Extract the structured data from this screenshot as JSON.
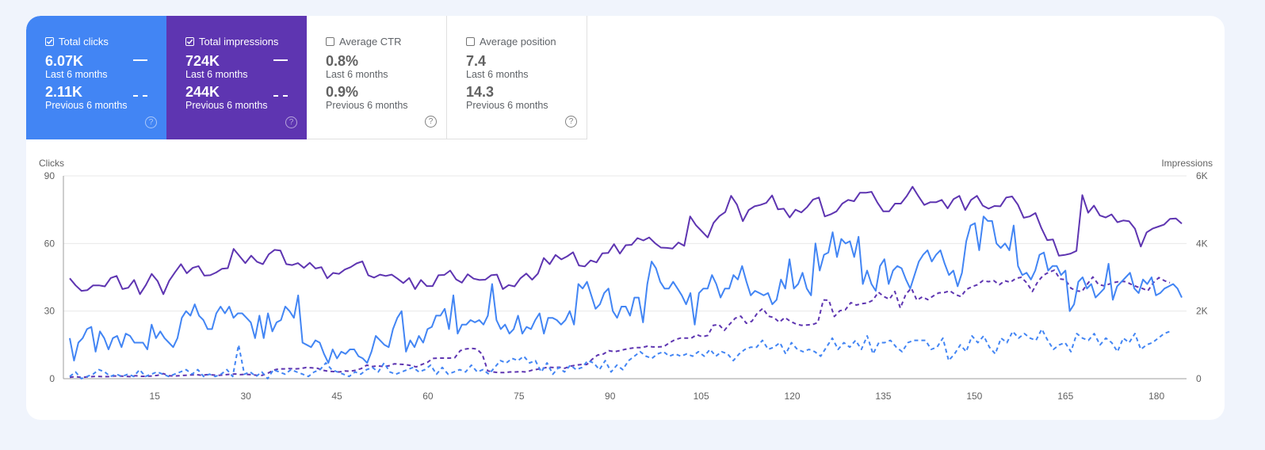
{
  "metrics": [
    {
      "id": "clicks",
      "label": "Total clicks",
      "checked": true,
      "current": "6.07K",
      "current_label": "Last 6 months",
      "previous": "2.11K",
      "previous_label": "Previous 6 months",
      "color": "#4285f4"
    },
    {
      "id": "impressions",
      "label": "Total impressions",
      "checked": true,
      "current": "724K",
      "current_label": "Last 6 months",
      "previous": "244K",
      "previous_label": "Previous 6 months",
      "color": "#5e35b1"
    },
    {
      "id": "ctr",
      "label": "Average CTR",
      "checked": false,
      "current": "0.8%",
      "current_label": "Last 6 months",
      "previous": "0.9%",
      "previous_label": "Previous 6 months"
    },
    {
      "id": "position",
      "label": "Average position",
      "checked": false,
      "current": "7.4",
      "current_label": "Last 6 months",
      "previous": "14.3",
      "previous_label": "Previous 6 months"
    }
  ],
  "help_glyph": "?",
  "chart_data": {
    "type": "line",
    "left_axis": {
      "label": "Clicks",
      "ylim": [
        0,
        90
      ],
      "ticks": [
        "0",
        "30",
        "60",
        "90"
      ]
    },
    "right_axis": {
      "label": "Impressions",
      "ylim": [
        0,
        6000
      ],
      "ticks": [
        "0",
        "2K",
        "4K",
        "6K"
      ]
    },
    "x_ticks": [
      "15",
      "30",
      "45",
      "60",
      "75",
      "90",
      "105",
      "120",
      "135",
      "150",
      "165",
      "180"
    ],
    "grid": true,
    "series": [
      {
        "name": "Total clicks (Last 6 months)",
        "axis": "left",
        "style": "solid",
        "color": "#4285f4",
        "values": [
          18,
          8,
          16,
          18,
          22,
          23,
          12,
          21,
          18,
          13,
          18,
          19,
          14,
          20,
          19,
          16,
          16,
          16,
          13,
          24,
          18,
          21,
          18,
          16,
          14,
          18,
          27,
          30,
          28,
          33,
          28,
          26,
          22,
          22,
          29,
          32,
          29,
          32,
          27,
          29,
          29,
          27,
          25,
          18,
          28,
          18,
          29,
          21,
          25,
          26,
          32,
          30,
          27,
          37,
          16,
          15,
          14,
          17,
          16,
          11,
          7,
          13,
          9,
          12,
          11,
          13,
          13,
          10,
          9,
          7,
          12,
          19,
          17,
          15,
          14,
          22,
          27,
          30,
          12,
          17,
          14,
          19,
          16,
          22,
          23,
          28,
          28,
          31,
          22,
          37,
          20,
          24,
          24,
          26,
          25,
          26,
          24,
          28,
          42,
          26,
          22,
          24,
          20,
          22,
          28,
          20,
          23,
          22,
          26,
          29,
          20,
          27,
          27,
          26,
          24,
          26,
          30,
          24,
          42,
          40,
          43,
          37,
          31,
          33,
          38,
          40,
          30,
          27,
          32,
          32,
          28,
          36,
          36,
          25,
          42,
          52,
          49,
          43,
          40,
          40,
          43,
          40,
          37,
          33,
          38,
          24,
          38,
          40,
          40,
          46,
          42,
          36,
          40,
          40,
          46,
          44,
          50,
          43,
          37,
          39,
          38,
          37,
          38,
          33,
          35,
          44,
          40,
          53,
          40,
          42,
          47,
          40,
          37,
          60,
          48,
          55,
          56,
          65,
          54,
          62,
          60,
          61,
          54,
          63,
          42,
          48,
          42,
          39,
          50,
          53,
          42,
          48,
          50,
          49,
          44,
          40,
          46,
          52,
          55,
          57,
          52,
          55,
          57,
          51,
          46,
          48,
          41,
          47,
          61,
          68,
          69,
          57,
          72,
          70,
          70,
          60,
          58,
          60,
          57,
          68,
          50,
          46,
          47,
          44,
          48,
          55,
          56,
          48,
          50,
          50,
          46,
          48,
          30,
          33,
          43,
          45,
          40,
          42,
          36,
          38,
          40,
          51,
          35,
          41,
          43,
          45,
          47,
          40,
          38,
          44,
          42,
          45,
          37,
          38,
          40,
          41,
          42,
          40,
          36
        ]
      },
      {
        "name": "Total impressions (Last 6 months)",
        "axis": "right",
        "style": "solid",
        "color": "#5e35b1",
        "values": [
          2970,
          2760,
          2600,
          2620,
          2760,
          2760,
          2730,
          2980,
          3040,
          2650,
          2690,
          2920,
          2500,
          2770,
          3100,
          2890,
          2500,
          2900,
          3150,
          3390,
          3120,
          3280,
          3330,
          3050,
          3060,
          3140,
          3250,
          3270,
          3840,
          3630,
          3420,
          3640,
          3460,
          3390,
          3680,
          3810,
          3790,
          3390,
          3360,
          3420,
          3280,
          3430,
          3260,
          3300,
          2970,
          3130,
          3100,
          3230,
          3300,
          3410,
          3470,
          3060,
          2990,
          3080,
          3040,
          3080,
          2960,
          2830,
          2980,
          2650,
          2920,
          2740,
          2740,
          3060,
          3070,
          3200,
          2940,
          2840,
          3090,
          2960,
          2920,
          2930,
          3060,
          3080,
          2650,
          2770,
          2730,
          2970,
          3110,
          2930,
          3110,
          3570,
          3390,
          3660,
          3530,
          3620,
          3740,
          3350,
          3320,
          3500,
          3440,
          3710,
          3720,
          3980,
          3700,
          3950,
          3960,
          4160,
          4090,
          4180,
          4010,
          3880,
          3870,
          3850,
          4030,
          3930,
          4800,
          4540,
          4360,
          4180,
          4610,
          4810,
          4930,
          5410,
          5150,
          4660,
          4990,
          5100,
          5140,
          5200,
          5420,
          5010,
          5030,
          4770,
          5000,
          4920,
          5080,
          5300,
          5360,
          4800,
          4860,
          4950,
          5180,
          5290,
          5250,
          5500,
          5500,
          5530,
          5210,
          4950,
          4950,
          5180,
          5180,
          5400,
          5680,
          5400,
          5140,
          5220,
          5220,
          5290,
          5040,
          5310,
          5410,
          4990,
          5290,
          5410,
          5120,
          5030,
          5110,
          5100,
          5360,
          5390,
          5150,
          4760,
          4800,
          4900,
          4460,
          4100,
          4120,
          3640,
          3660,
          3700,
          3780,
          5430,
          4910,
          5120,
          4830,
          4770,
          4860,
          4630,
          4680,
          4660,
          4440,
          3910,
          4330,
          4440,
          4500,
          4560,
          4730,
          4740,
          4590
        ]
      },
      {
        "name": "Total clicks (Previous 6 months)",
        "axis": "left",
        "style": "dashed",
        "color": "#4285f4",
        "values": [
          1,
          3,
          0,
          1,
          2,
          4,
          3,
          1,
          2,
          1,
          2,
          1,
          4,
          1,
          2,
          3,
          2,
          1,
          2,
          3,
          4,
          2,
          4,
          1,
          2,
          1,
          2,
          4,
          1,
          15,
          2,
          3,
          1,
          3,
          0,
          4,
          3,
          2,
          4,
          3,
          2,
          1,
          3,
          4,
          7,
          4,
          3,
          2,
          1,
          3,
          2,
          4,
          5,
          3,
          7,
          3,
          2,
          3,
          4,
          5,
          3,
          4,
          6,
          2,
          5,
          2,
          3,
          4,
          3,
          6,
          3,
          4,
          2,
          5,
          8,
          7,
          9,
          8,
          10,
          7,
          8,
          3,
          7,
          2,
          5,
          3,
          6,
          4,
          5,
          8,
          7,
          4,
          8,
          3,
          6,
          4,
          8,
          10,
          12,
          10,
          9,
          11,
          12,
          10,
          11,
          10,
          11,
          10,
          12,
          10,
          13,
          10,
          12,
          11,
          8,
          11,
          13,
          14,
          14,
          17,
          13,
          14,
          16,
          11,
          16,
          13,
          12,
          13,
          12,
          10,
          14,
          18,
          13,
          16,
          14,
          17,
          13,
          19,
          11,
          16,
          16,
          17,
          14,
          12,
          16,
          17,
          17,
          17,
          13,
          14,
          18,
          8,
          11,
          15,
          12,
          19,
          16,
          19,
          14,
          11,
          18,
          16,
          21,
          18,
          20,
          18,
          17,
          22,
          17,
          13,
          15,
          16,
          12,
          20,
          18,
          17,
          20,
          15,
          18,
          16,
          12,
          18,
          16,
          20,
          13,
          15,
          16,
          18,
          20,
          21
        ]
      },
      {
        "name": "Total impressions (Previous 6 months)",
        "axis": "right",
        "style": "dashed",
        "color": "#5e35b1",
        "values": [
          40,
          60,
          40,
          50,
          60,
          70,
          60,
          60,
          80,
          80,
          70,
          60,
          90,
          70,
          70,
          80,
          100,
          150,
          90,
          80,
          90,
          100,
          110,
          120,
          100,
          120,
          110,
          100,
          110,
          130,
          140,
          120,
          130,
          120,
          100,
          100,
          160,
          250,
          290,
          290,
          300,
          290,
          300,
          330,
          320,
          310,
          250,
          220,
          210,
          200,
          230,
          220,
          250,
          300,
          400,
          360,
          380,
          360,
          380,
          440,
          430,
          420,
          390,
          350,
          420,
          480,
          600,
          610,
          610,
          610,
          620,
          830,
          880,
          900,
          880,
          720,
          230,
          200,
          180,
          180,
          200,
          200,
          210,
          200,
          250,
          280,
          310,
          340,
          330,
          340,
          310,
          370,
          400,
          420,
          420,
          580,
          700,
          730,
          830,
          800,
          830,
          870,
          900,
          920,
          920,
          960,
          940,
          940,
          950,
          1060,
          1150,
          1200,
          1200,
          1200,
          1300,
          1240,
          1280,
          1580,
          1600,
          1430,
          1620,
          1790,
          1850,
          1640,
          1700,
          1940,
          2080,
          1850,
          1810,
          1670,
          1810,
          1700,
          1620,
          1580,
          1590,
          1600,
          1660,
          2330,
          2320,
          1840,
          2010,
          2040,
          2250,
          2180,
          2220,
          2240,
          2320,
          2560,
          2430,
          2350,
          2580,
          2090,
          2500,
          2680,
          2320,
          2420,
          2340,
          2450,
          2540,
          2550,
          2600,
          2490,
          2430,
          2640,
          2720,
          2780,
          2900,
          2870,
          2900,
          2780,
          2900,
          2850,
          2970,
          3000,
          2830,
          2580,
          2870,
          3060,
          3150,
          3210,
          2950,
          2930,
          2680,
          2600,
          2580,
          2800,
          3010,
          2790,
          2750,
          2800,
          2850,
          2880,
          2870,
          2790,
          2720,
          2670,
          2600,
          2840,
          2990,
          2900,
          2840
        ]
      }
    ]
  }
}
